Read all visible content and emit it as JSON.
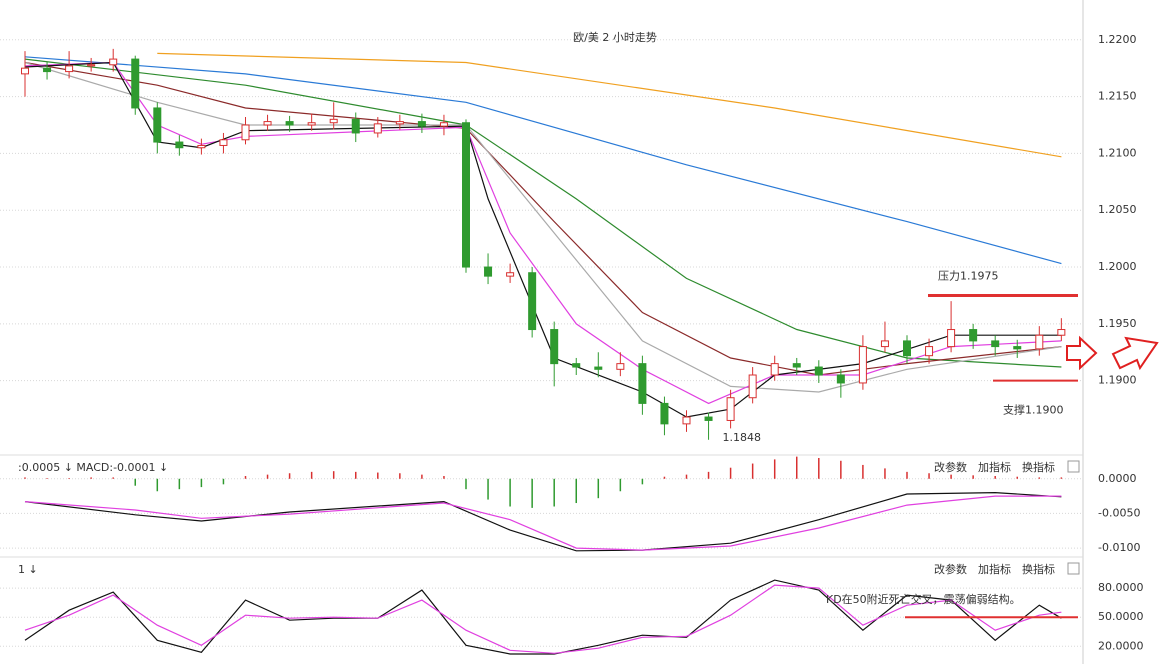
{
  "chart_data": [
    {
      "type": "candlestick",
      "title": "欧/美 2 小时走势",
      "open": [
        1.217,
        1.2175,
        1.2172,
        1.2177,
        1.2178,
        1.2183,
        1.214,
        1.211,
        1.2105,
        1.2107,
        1.2112,
        1.2125,
        1.2128,
        1.2125,
        1.2127,
        1.213,
        1.2118,
        1.2126,
        1.2128,
        1.2124,
        1.2127,
        1.2,
        1.1992,
        1.1995,
        1.1945,
        1.1915,
        1.1912,
        1.191,
        1.1915,
        1.188,
        1.1862,
        1.1868,
        1.1865,
        1.1885,
        1.1905,
        1.1915,
        1.1912,
        1.1905,
        1.1898,
        1.193,
        1.1935,
        1.1922,
        1.193,
        1.1945,
        1.1935,
        1.193,
        1.1928,
        1.194
      ],
      "high": [
        1.219,
        1.2181,
        1.219,
        1.2184,
        1.2192,
        1.2186,
        1.2145,
        1.2116,
        1.2113,
        1.2118,
        1.2132,
        1.2134,
        1.2133,
        1.2135,
        1.2145,
        1.2136,
        1.2132,
        1.2134,
        1.2135,
        1.2134,
        1.213,
        1.2012,
        1.2003,
        1.2,
        1.1952,
        1.192,
        1.1925,
        1.1925,
        1.1922,
        1.1886,
        1.1874,
        1.1872,
        1.1892,
        1.1912,
        1.1922,
        1.192,
        1.1918,
        1.191,
        1.194,
        1.1952,
        1.194,
        1.1937,
        1.197,
        1.195,
        1.194,
        1.1936,
        1.1948,
        1.1955
      ],
      "low": [
        1.215,
        1.2165,
        1.2166,
        1.2172,
        1.2172,
        1.2134,
        1.21,
        1.2098,
        1.2099,
        1.21,
        1.2108,
        1.212,
        1.2119,
        1.212,
        1.2121,
        1.211,
        1.2114,
        1.2121,
        1.2118,
        1.2116,
        1.1995,
        1.1985,
        1.1986,
        1.1938,
        1.1895,
        1.1905,
        1.1903,
        1.1904,
        1.187,
        1.1852,
        1.1855,
        1.1848,
        1.1858,
        1.188,
        1.19,
        1.1905,
        1.1898,
        1.1885,
        1.1892,
        1.1925,
        1.1915,
        1.1915,
        1.1925,
        1.1928,
        1.1922,
        1.192,
        1.1922,
        1.1935
      ],
      "close": [
        1.2175,
        1.2172,
        1.2177,
        1.2178,
        1.2183,
        1.214,
        1.211,
        1.2105,
        1.2107,
        1.2112,
        1.2125,
        1.2128,
        1.2125,
        1.2127,
        1.213,
        1.2118,
        1.2126,
        1.2128,
        1.2124,
        1.2127,
        1.2,
        1.1992,
        1.1995,
        1.1945,
        1.1915,
        1.1912,
        1.191,
        1.1915,
        1.188,
        1.1862,
        1.1868,
        1.1865,
        1.1885,
        1.1905,
        1.1915,
        1.1912,
        1.1905,
        1.1898,
        1.193,
        1.1935,
        1.1922,
        1.193,
        1.1945,
        1.1935,
        1.193,
        1.1928,
        1.194,
        1.1945
      ],
      "up_color": "#d83030",
      "down_color": "#2f9a2f",
      "series": [
        {
          "color": "#f0a020",
          "x": [
            6,
            20,
            34,
            47
          ],
          "values": [
            1.2188,
            1.218,
            1.214,
            1.2097
          ]
        },
        {
          "color": "#2a7ad6",
          "x": [
            0,
            10,
            20,
            30,
            40,
            47
          ],
          "values": [
            1.2185,
            1.217,
            1.2145,
            1.209,
            1.204,
            1.2003
          ]
        },
        {
          "color": "#2e8b2e",
          "x": [
            0,
            10,
            20,
            25,
            30,
            35,
            40,
            47
          ],
          "values": [
            1.2183,
            1.216,
            1.2125,
            1.206,
            1.199,
            1.1945,
            1.192,
            1.1912
          ]
        },
        {
          "color": "#8b2a2a",
          "x": [
            0,
            6,
            10,
            20,
            24,
            28,
            32,
            36,
            40,
            47
          ],
          "values": [
            1.218,
            1.216,
            1.214,
            1.2122,
            1.204,
            1.196,
            1.192,
            1.1905,
            1.1915,
            1.193
          ]
        },
        {
          "color": "#aaaaaa",
          "x": [
            0,
            6,
            10,
            20,
            24,
            28,
            32,
            36,
            40,
            47
          ],
          "values": [
            1.218,
            1.2145,
            1.2125,
            1.2125,
            1.203,
            1.1935,
            1.1895,
            1.189,
            1.191,
            1.193
          ]
        },
        {
          "color": "#e040e0",
          "x": [
            0,
            4,
            6,
            8,
            10,
            20,
            22,
            25,
            28,
            31,
            34,
            38,
            42,
            47
          ],
          "values": [
            1.2177,
            1.218,
            1.2125,
            1.2108,
            1.2115,
            1.2123,
            1.203,
            1.195,
            1.191,
            1.188,
            1.1905,
            1.1905,
            1.193,
            1.1935
          ]
        },
        {
          "color": "#111111",
          "x": [
            0,
            4,
            6,
            8,
            10,
            20,
            21,
            24,
            28,
            30,
            32,
            34,
            38,
            42,
            47
          ],
          "values": [
            1.2176,
            1.218,
            1.211,
            1.2105,
            1.212,
            1.2124,
            1.206,
            1.192,
            1.189,
            1.1868,
            1.1875,
            1.1905,
            1.1915,
            1.194,
            1.194
          ]
        }
      ],
      "ylim": [
        1.1839,
        1.2235
      ],
      "yticks": [
        {
          "value": 1.22,
          "label": "1.2200"
        },
        {
          "value": 1.215,
          "label": "1.2150"
        },
        {
          "value": 1.21,
          "label": "1.2100"
        },
        {
          "value": 1.205,
          "label": "1.2050"
        },
        {
          "value": 1.2,
          "label": "1.2000"
        },
        {
          "value": 1.195,
          "label": "1.1950"
        },
        {
          "value": 1.19,
          "label": "1.1900"
        }
      ],
      "grid": true,
      "low_label": "1.1848",
      "resistance": {
        "label": "压力1.1975",
        "value": 1.1975
      },
      "support": {
        "label": "支撑1.1900",
        "value": 1.19
      },
      "annotation_color": "#e03030"
    },
    {
      "type": "macd",
      "header": ":0.0005 ↓ MACD:-0.0001 ↓",
      "toolbar": [
        "改参数",
        "加指标",
        "换指标"
      ],
      "series": [
        {
          "color": "#111111",
          "x": [
            0,
            5,
            8,
            12,
            19,
            22,
            25,
            28,
            32,
            36,
            40,
            44,
            47
          ],
          "values": [
            -0.0033,
            -0.0052,
            -0.0061,
            -0.0048,
            -0.0033,
            -0.0074,
            -0.0104,
            -0.0103,
            -0.0093,
            -0.0059,
            -0.0022,
            -0.002,
            -0.0026
          ]
        },
        {
          "color": "#e040e0",
          "x": [
            0,
            5,
            8,
            12,
            19,
            22,
            25,
            28,
            32,
            36,
            40,
            44,
            47
          ],
          "values": [
            -0.0033,
            -0.0045,
            -0.0057,
            -0.0051,
            -0.0035,
            -0.0059,
            -0.01,
            -0.0103,
            -0.0097,
            -0.0071,
            -0.0038,
            -0.0025,
            -0.0025
          ]
        }
      ],
      "histogram": [
        0.0002,
        0.0001,
        0.0001,
        0.0002,
        0.0002,
        -0.001,
        -0.0018,
        -0.0015,
        -0.0012,
        -0.0008,
        0.0004,
        0.0006,
        0.0008,
        0.001,
        0.0011,
        0.001,
        0.0009,
        0.0008,
        0.0006,
        0.0004,
        -0.0015,
        -0.003,
        -0.004,
        -0.0042,
        -0.004,
        -0.0035,
        -0.0028,
        -0.0018,
        -0.0008,
        0.0003,
        0.0006,
        0.001,
        0.0016,
        0.0022,
        0.0028,
        0.0032,
        0.003,
        0.0026,
        0.002,
        0.0015,
        0.001,
        0.0008,
        0.0006,
        0.0005,
        0.0004,
        0.0003,
        0.0002,
        0.0002
      ],
      "up_color": "#d83030",
      "down_color": "#2f9a2f",
      "ylim": [
        -0.011,
        0.003
      ],
      "yticks": [
        {
          "value": 0,
          "label": "0.0000"
        },
        {
          "value": -0.005,
          "label": "-0.0050"
        },
        {
          "value": -0.01,
          "label": "-0.0100"
        }
      ],
      "grid": true
    },
    {
      "type": "kd",
      "header": "1 ↓",
      "toolbar": [
        "改参数",
        "加指标",
        "换指标"
      ],
      "series": [
        {
          "color": "#111111",
          "x": [
            0,
            2,
            4,
            6,
            8,
            10,
            12,
            14,
            16,
            18,
            20,
            22,
            24,
            26,
            28,
            30,
            32,
            34,
            36,
            38,
            40,
            42,
            44,
            46,
            47
          ],
          "values": [
            26.2,
            57.2,
            75.9,
            26.2,
            13.8,
            67.6,
            46.9,
            49,
            49,
            77.9,
            21,
            12,
            12,
            21,
            31.4,
            29.3,
            67.6,
            88.3,
            77.9,
            36.6,
            72.8,
            67.6,
            26.2,
            62.4,
            49
          ]
        },
        {
          "color": "#e040e0",
          "x": [
            0,
            2,
            4,
            6,
            8,
            10,
            12,
            14,
            16,
            18,
            20,
            22,
            24,
            26,
            28,
            30,
            32,
            34,
            36,
            38,
            40,
            42,
            44,
            46,
            47
          ],
          "values": [
            36.6,
            52.1,
            72.8,
            41.7,
            21,
            52.1,
            49,
            50,
            49,
            67.6,
            36.6,
            15.9,
            12.8,
            18,
            29.3,
            30.3,
            52.1,
            83.1,
            80,
            41.7,
            62.4,
            67.6,
            36.6,
            52.1,
            55.2
          ]
        }
      ],
      "reference_line": 50,
      "annotation": "KD在50附近死亡交叉，震荡偏弱结构。",
      "annotation_color": "#e03030",
      "ylim": [
        11,
        109
      ],
      "yticks": [
        {
          "value": 80,
          "label": "80.0000"
        },
        {
          "value": 50,
          "label": "50.0000"
        },
        {
          "value": 20,
          "label": "20.0000"
        }
      ],
      "grid": true
    }
  ]
}
